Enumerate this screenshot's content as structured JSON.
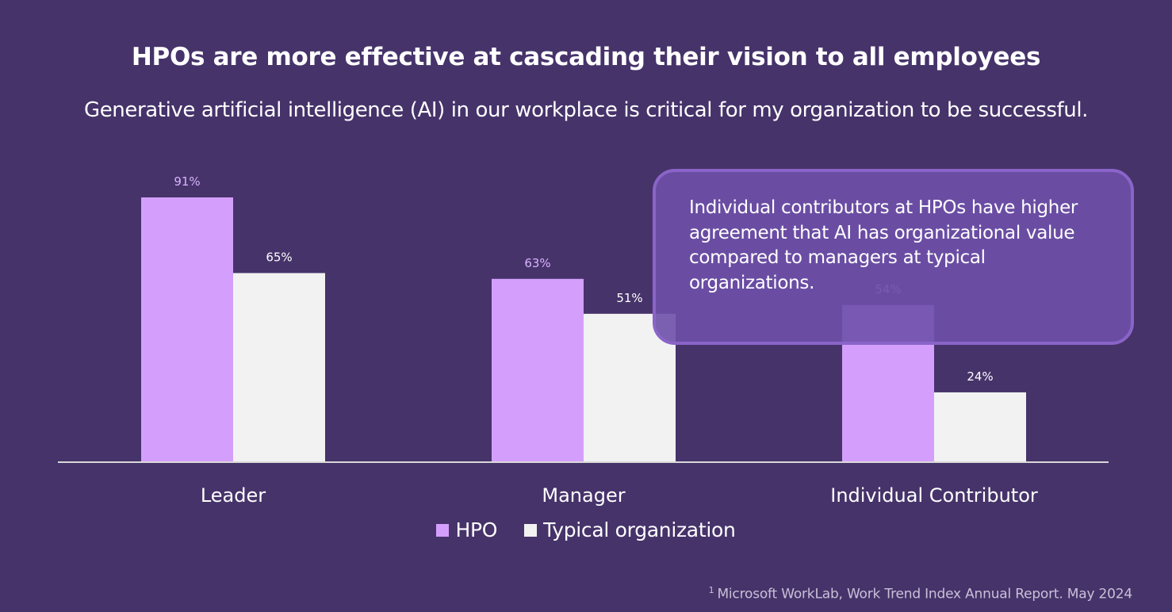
{
  "page": {
    "title": "HPOs are more effective at cascading their vision to all employees",
    "subtitle": "Generative artificial intelligence (AI) in our workplace is critical for my organization to be successful.",
    "callout_text": "Individual contributors at HPOs have higher agreement that AI has organizational value compared to managers at typical organizations.",
    "footnote_marker": "1",
    "footnote_text": "Microsoft WorkLab, Work Trend Index Annual Report. May 2024",
    "background_color": "#46336a"
  },
  "chart_data": {
    "type": "bar",
    "categories": [
      "Leader",
      "Manager",
      "Individual Contributor"
    ],
    "series": [
      {
        "name": "HPO",
        "values": [
          91,
          63,
          54
        ],
        "labels": [
          "91%",
          "63%",
          "54%"
        ],
        "color": "#d49ffc",
        "label_color": "#d9b3ff"
      },
      {
        "name": "Typical organization",
        "values": [
          65,
          51,
          24
        ],
        "labels": [
          "65%",
          "51%",
          "24%"
        ],
        "color": "#f2f2f2",
        "label_color": "#ffffff"
      }
    ],
    "ylim": [
      0,
      100
    ],
    "grid": false,
    "legend_position": "bottom-center",
    "xlabel": "",
    "ylabel": ""
  }
}
